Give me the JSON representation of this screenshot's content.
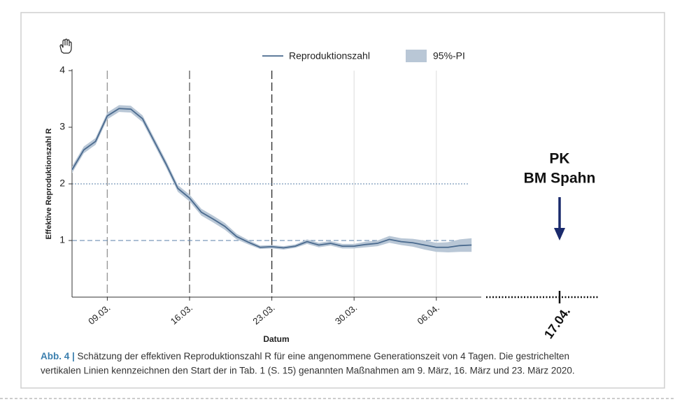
{
  "chart_data": {
    "type": "line",
    "ylabel": "Effektive Reproduktionszahl R",
    "xlabel": "Datum",
    "categories": [
      null,
      null,
      null,
      "09.03.",
      null,
      null,
      null,
      null,
      null,
      null,
      "16.03.",
      null,
      null,
      null,
      null,
      null,
      null,
      "23.03.",
      null,
      null,
      null,
      null,
      null,
      null,
      "30.03.",
      null,
      null,
      null,
      null,
      null,
      null,
      "06.04.",
      null,
      null,
      null
    ],
    "series": [
      {
        "name": "Reproduktionszahl",
        "color": "#4a6a8e",
        "values": [
          2.25,
          2.6,
          2.75,
          3.2,
          3.33,
          3.32,
          3.15,
          2.75,
          2.35,
          1.92,
          1.75,
          1.5,
          1.38,
          1.25,
          1.07,
          0.97,
          0.88,
          0.89,
          0.87,
          0.9,
          0.98,
          0.92,
          0.95,
          0.9,
          0.9,
          0.93,
          0.95,
          1.02,
          0.98,
          0.96,
          0.92,
          0.88,
          0.88,
          0.91,
          0.92
        ]
      }
    ],
    "band": {
      "name": "95%-PI",
      "color": "#b9c7d6",
      "lower": [
        2.19,
        2.54,
        2.69,
        3.14,
        3.27,
        3.26,
        3.09,
        2.69,
        2.29,
        1.86,
        1.69,
        1.44,
        1.32,
        1.19,
        1.02,
        0.93,
        0.85,
        0.86,
        0.84,
        0.87,
        0.94,
        0.88,
        0.91,
        0.86,
        0.86,
        0.88,
        0.9,
        0.96,
        0.92,
        0.89,
        0.84,
        0.8,
        0.79,
        0.8,
        0.8
      ],
      "upper": [
        2.31,
        2.66,
        2.81,
        3.26,
        3.39,
        3.38,
        3.21,
        2.81,
        2.41,
        1.98,
        1.81,
        1.56,
        1.44,
        1.31,
        1.12,
        1.01,
        0.91,
        0.92,
        0.9,
        0.93,
        1.02,
        0.96,
        0.99,
        0.94,
        0.94,
        0.98,
        1.0,
        1.08,
        1.04,
        1.03,
        1.0,
        0.96,
        0.97,
        1.02,
        1.04
      ]
    },
    "ylim": [
      0,
      4
    ],
    "yticks": [
      1,
      2,
      3,
      4
    ],
    "hlines": [
      2,
      1
    ],
    "measures": [
      3,
      10,
      17
    ],
    "caption": {
      "label": "Abb. 4 |",
      "lines": [
        " Schätzung der effektiven Reproduktionszahl R für eine angenommene Generationszeit von 4 Tagen. Die gestrichelten",
        "vertikalen Linien kennzeichnen den Start der in Tab. 1 (S. 15) genannten Maßnahmen am 9. März, 16. März und 23. März 2020."
      ]
    },
    "annotation": {
      "lines": [
        "PK",
        "BM Spahn"
      ],
      "date": "17.04."
    }
  }
}
